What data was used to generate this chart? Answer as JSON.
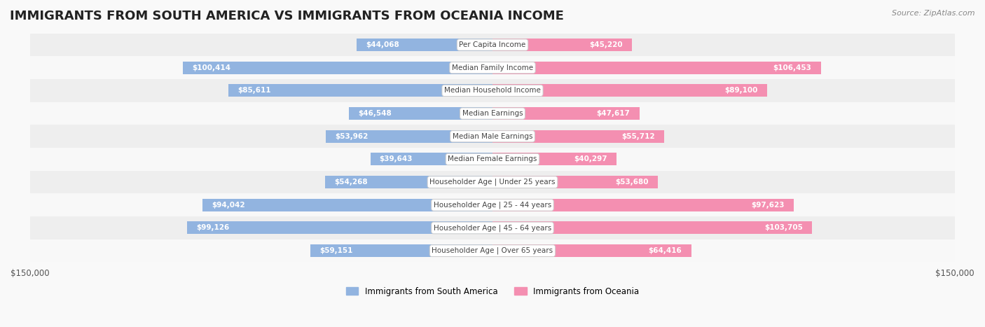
{
  "title": "IMMIGRANTS FROM SOUTH AMERICA VS IMMIGRANTS FROM OCEANIA INCOME",
  "source": "Source: ZipAtlas.com",
  "categories": [
    "Per Capita Income",
    "Median Family Income",
    "Median Household Income",
    "Median Earnings",
    "Median Male Earnings",
    "Median Female Earnings",
    "Householder Age | Under 25 years",
    "Householder Age | 25 - 44 years",
    "Householder Age | 45 - 64 years",
    "Householder Age | Over 65 years"
  ],
  "south_america_values": [
    44068,
    100414,
    85611,
    46548,
    53962,
    39643,
    54268,
    94042,
    99126,
    59151
  ],
  "oceania_values": [
    45220,
    106453,
    89100,
    47617,
    55712,
    40297,
    53680,
    97623,
    103705,
    64416
  ],
  "south_america_labels": [
    "$44,068",
    "$100,414",
    "$85,611",
    "$46,548",
    "$53,962",
    "$39,643",
    "$54,268",
    "$94,042",
    "$99,126",
    "$59,151"
  ],
  "oceania_labels": [
    "$45,220",
    "$106,453",
    "$89,100",
    "$47,617",
    "$55,712",
    "$40,297",
    "$53,680",
    "$97,623",
    "$103,705",
    "$64,416"
  ],
  "south_america_color": "#92b4e0",
  "oceania_color": "#f48fb1",
  "south_america_color_dark": "#6fa0d8",
  "oceania_color_dark": "#f06292",
  "max_value": 150000,
  "background_color": "#f5f5f5",
  "row_bg_color": "#f0f0f0",
  "label_box_color": "#ffffff",
  "title_fontsize": 13,
  "bar_height": 0.55,
  "legend_label_sa": "Immigrants from South America",
  "legend_label_oc": "Immigrants from Oceania"
}
